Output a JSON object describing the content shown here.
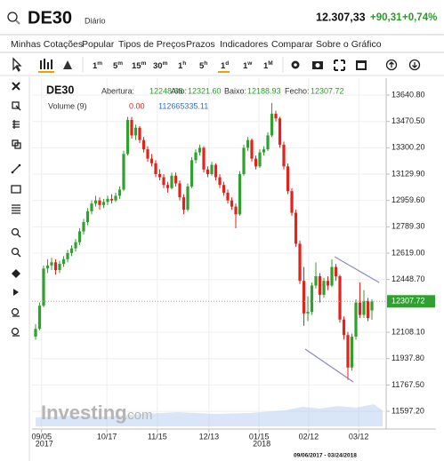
{
  "header": {
    "symbol": "DE30",
    "period": "Diário",
    "price": "12.307,33",
    "change": "+90,31",
    "change_pct": "+0,74%"
  },
  "menu": [
    "Minhas Cotações",
    "Popular",
    "Tipos de Preços",
    "Prazos",
    "Indicadores",
    "Comparar",
    "Sobre o Gráfico"
  ],
  "timeframes": [
    {
      "n": "1",
      "u": "m"
    },
    {
      "n": "5",
      "u": "m"
    },
    {
      "n": "15",
      "u": "m"
    },
    {
      "n": "30",
      "u": "m"
    },
    {
      "n": "1",
      "u": "h"
    },
    {
      "n": "5",
      "u": "h"
    },
    {
      "n": "1",
      "u": "d"
    },
    {
      "n": "1",
      "u": "w"
    },
    {
      "n": "1",
      "u": "M"
    }
  ],
  "chart_data": {
    "type": "candlestick",
    "name": "DE30",
    "ohlc_legend": [
      {
        "label": "Abertura:",
        "value": "12248.68"
      },
      {
        "label": "Alto:",
        "value": "12321.60"
      },
      {
        "label": "Baixo:",
        "value": "12188.93"
      },
      {
        "label": "Fecho:",
        "value": "12307.72"
      }
    ],
    "volume_legend": {
      "label": "Volume (9)",
      "value": "0.00",
      "total": "112665335.11"
    },
    "last_price_label": "12307.72",
    "watermark": "Investing",
    "watermark_suffix": ".com",
    "date_range": "09/06/2017 - 03/24/2018",
    "up_color": "#2fa12f",
    "down_color": "#e3221b",
    "grid": true,
    "ylim": [
      11500,
      13727
    ],
    "yticks": [
      {
        "value": 13640.8,
        "label": "13640.80"
      },
      {
        "value": 13470.5,
        "label": "13470.50"
      },
      {
        "value": 13300.2,
        "label": "13300.20"
      },
      {
        "value": 13129.9,
        "label": "13129.90"
      },
      {
        "value": 12959.6,
        "label": "12959.60"
      },
      {
        "value": 12789.3,
        "label": "12789.30"
      },
      {
        "value": 12619,
        "label": "12619.00"
      },
      {
        "value": 12448.7,
        "label": "12448.70"
      },
      {
        "value": 12108.1,
        "label": "12108.10"
      },
      {
        "value": 11937.8,
        "label": "11937.80"
      },
      {
        "value": 11767.5,
        "label": "11767.50"
      },
      {
        "value": 11597.2,
        "label": "11597.20"
      }
    ],
    "xticks": [
      {
        "value": 1.5,
        "label": "09/05"
      },
      {
        "value": 17.8,
        "label": "10/17"
      },
      {
        "value": 30.4,
        "label": "11/15"
      },
      {
        "value": 43.3,
        "label": "12/13"
      },
      {
        "value": 55.8,
        "label": "01/15"
      },
      {
        "value": 68.2,
        "label": "02/12"
      },
      {
        "value": 80.7,
        "label": "03/12"
      }
    ],
    "x_years": [
      {
        "value": 1.5,
        "label": "2017"
      },
      {
        "value": 55.8,
        "label": "2018"
      }
    ],
    "candles": [
      [
        12080,
        12160,
        12060,
        12130
      ],
      [
        12130,
        12300,
        12120,
        12280
      ],
      [
        12280,
        12540,
        12270,
        12520
      ],
      [
        12520,
        12580,
        12490,
        12540
      ],
      [
        12540,
        12590,
        12510,
        12560
      ],
      [
        12560,
        12580,
        12480,
        12510
      ],
      [
        12510,
        12570,
        12490,
        12550
      ],
      [
        12550,
        12600,
        12530,
        12580
      ],
      [
        12580,
        12640,
        12560,
        12620
      ],
      [
        12620,
        12670,
        12600,
        12650
      ],
      [
        12650,
        12710,
        12630,
        12690
      ],
      [
        12690,
        12780,
        12670,
        12760
      ],
      [
        12760,
        12840,
        12740,
        12820
      ],
      [
        12820,
        12910,
        12800,
        12890
      ],
      [
        12890,
        12960,
        12870,
        12940
      ],
      [
        12940,
        12990,
        12920,
        12960
      ],
      [
        12960,
        12980,
        12900,
        12930
      ],
      [
        12930,
        12970,
        12910,
        12950
      ],
      [
        12950,
        12990,
        12930,
        12970
      ],
      [
        12970,
        13000,
        12940,
        12960
      ],
      [
        12960,
        13010,
        12950,
        12990
      ],
      [
        12990,
        13050,
        12970,
        13030
      ],
      [
        13030,
        13280,
        13020,
        13260
      ],
      [
        13260,
        13500,
        13250,
        13480
      ],
      [
        13480,
        13500,
        13360,
        13380
      ],
      [
        13380,
        13450,
        13350,
        13430
      ],
      [
        13430,
        13440,
        13330,
        13350
      ],
      [
        13350,
        13370,
        13270,
        13290
      ],
      [
        13290,
        13310,
        13210,
        13230
      ],
      [
        13230,
        13260,
        13180,
        13200
      ],
      [
        13200,
        13220,
        13110,
        13130
      ],
      [
        13130,
        13160,
        13090,
        13110
      ],
      [
        13110,
        13130,
        13040,
        13060
      ],
      [
        13060,
        13080,
        13010,
        13040
      ],
      [
        13040,
        13140,
        13030,
        13120
      ],
      [
        13120,
        13140,
        13050,
        13070
      ],
      [
        13070,
        13090,
        12960,
        12980
      ],
      [
        12980,
        13000,
        12870,
        12900
      ],
      [
        12900,
        13070,
        12890,
        13050
      ],
      [
        13050,
        13240,
        13040,
        13220
      ],
      [
        13220,
        13290,
        13200,
        13270
      ],
      [
        13270,
        13320,
        13250,
        13300
      ],
      [
        13300,
        13310,
        13140,
        13160
      ],
      [
        13160,
        13180,
        13110,
        13130
      ],
      [
        13130,
        13210,
        13120,
        13190
      ],
      [
        13190,
        13200,
        13090,
        13110
      ],
      [
        13110,
        13130,
        13040,
        13060
      ],
      [
        13060,
        13080,
        12990,
        13010
      ],
      [
        13010,
        13030,
        12940,
        12960
      ],
      [
        12960,
        12980,
        12900,
        12920
      ],
      [
        12920,
        12940,
        12780,
        12870
      ],
      [
        12870,
        13150,
        12860,
        13130
      ],
      [
        13130,
        13320,
        13120,
        13300
      ],
      [
        13300,
        13370,
        13280,
        13350
      ],
      [
        13350,
        13360,
        13210,
        13230
      ],
      [
        13230,
        13250,
        13160,
        13180
      ],
      [
        13180,
        13290,
        13170,
        13270
      ],
      [
        13270,
        13310,
        13250,
        13290
      ],
      [
        13290,
        13400,
        13280,
        13380
      ],
      [
        13380,
        13590,
        13370,
        13520
      ],
      [
        13520,
        13540,
        13470,
        13490
      ],
      [
        13490,
        13500,
        13300,
        13320
      ],
      [
        13320,
        13340,
        13160,
        13180
      ],
      [
        13180,
        13200,
        13000,
        13020
      ],
      [
        13020,
        13040,
        12860,
        12880
      ],
      [
        12880,
        12900,
        12660,
        12680
      ],
      [
        12680,
        12700,
        12420,
        12440
      ],
      [
        12440,
        12530,
        12150,
        12230
      ],
      [
        12230,
        12340,
        12180,
        12240
      ],
      [
        12240,
        12430,
        12220,
        12410
      ],
      [
        12410,
        12560,
        12390,
        12470
      ],
      [
        12470,
        12490,
        12300,
        12350
      ],
      [
        12350,
        12460,
        12330,
        12440
      ],
      [
        12440,
        12470,
        12380,
        12410
      ],
      [
        12410,
        12580,
        12400,
        12530
      ],
      [
        12530,
        12550,
        12440,
        12470
      ],
      [
        12470,
        12480,
        12170,
        12190
      ],
      [
        12190,
        12210,
        12060,
        12090
      ],
      [
        12090,
        12110,
        11800,
        11880
      ],
      [
        11880,
        12100,
        11860,
        12080
      ],
      [
        12080,
        12320,
        12060,
        12300
      ],
      [
        12300,
        12430,
        12200,
        12220
      ],
      [
        12220,
        12380,
        12200,
        12310
      ],
      [
        12310,
        12330,
        12180,
        12200
      ],
      [
        12248.68,
        12321.6,
        12188.93,
        12307.72
      ]
    ]
  }
}
